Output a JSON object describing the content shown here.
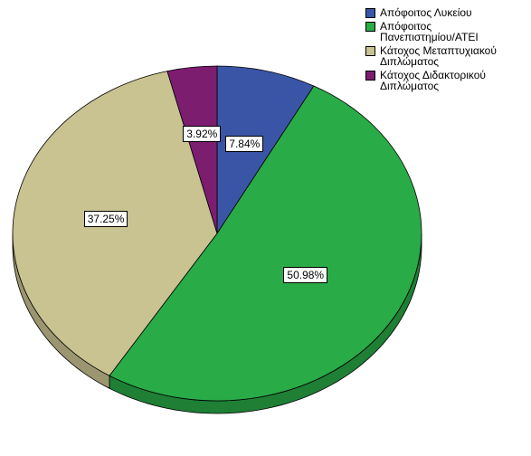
{
  "chart_data": {
    "type": "pie",
    "title": "",
    "start_angle_deg": 0,
    "direction": "clockwise",
    "slices": [
      {
        "label": "Απόφοιτος Λυκείου",
        "legend_lines": [
          "Απόφοιτος Λυκείου"
        ],
        "value": 7.84,
        "value_label": "7.84%",
        "color": "#3a55a6",
        "side_color": "#2b3f7c"
      },
      {
        "label": "Απόφοιτος Πανεπιστημίου/ΑΤΕΙ",
        "legend_lines": [
          "Απόφοιτος",
          "Πανεπιστημίου/ΑΤΕΙ"
        ],
        "value": 50.98,
        "value_label": "50.98%",
        "color": "#29ab47",
        "side_color": "#1e7f35"
      },
      {
        "label": "Κάτοχος Μεταπτυχιακού Διπλώματος",
        "legend_lines": [
          "Κάτοχος Μεταπτυχιακού",
          "Διπλώματος"
        ],
        "value": 37.25,
        "value_label": "37.25%",
        "color": "#c9c291",
        "side_color": "#9b9670"
      },
      {
        "label": "Κάτοχος Διδακτορικού Διπλώματος",
        "legend_lines": [
          "Κάτοχος Διδακτορικού",
          "Διπλώματος"
        ],
        "value": 3.92,
        "value_label": "3.92%",
        "color": "#7d1d6f",
        "side_color": "#5c1552"
      }
    ],
    "legend_position": "top-right",
    "data_labels": "inside"
  }
}
